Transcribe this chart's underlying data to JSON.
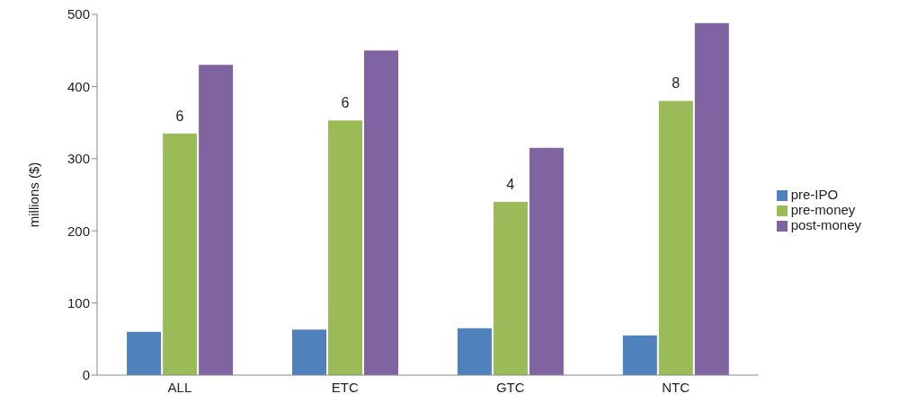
{
  "chart_data": {
    "type": "bar",
    "ylabel": "millions ($)",
    "categories": [
      "ALL",
      "ETC",
      "GTC",
      "NTC"
    ],
    "series": [
      {
        "name": "pre-IPO",
        "color": "#4f81bd",
        "values": [
          60,
          63,
          65,
          55
        ]
      },
      {
        "name": "pre-money",
        "color": "#9bbb59",
        "values": [
          335,
          353,
          240,
          380
        ]
      },
      {
        "name": "post-money",
        "color": "#8064a2",
        "values": [
          430,
          450,
          315,
          488
        ]
      }
    ],
    "ylim": [
      0,
      500
    ],
    "yticks": [
      0,
      100,
      200,
      300,
      400,
      500
    ],
    "grid": false,
    "legend": "right",
    "annotations": [
      {
        "text": "6",
        "x": "ALL",
        "y": 335
      },
      {
        "text": "6",
        "x": "ETC",
        "y": 353
      },
      {
        "text": "4",
        "x": "GTC",
        "y": 240
      },
      {
        "text": "8",
        "x": "NTC",
        "y": 380
      }
    ]
  }
}
